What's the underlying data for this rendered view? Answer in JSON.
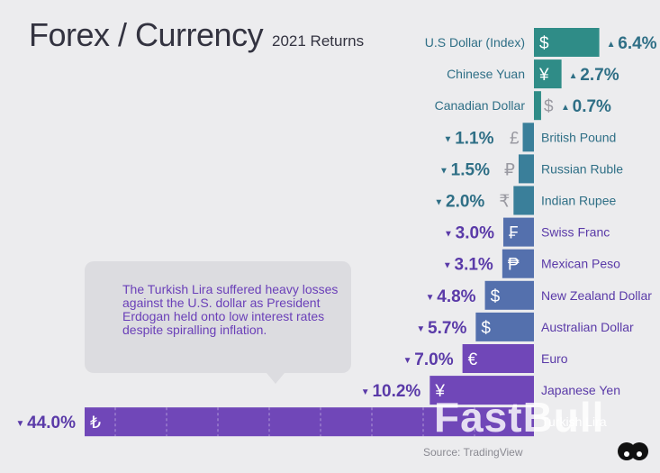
{
  "header": {
    "title": "Forex / Currency",
    "subtitle": "2021 Returns"
  },
  "callout": {
    "text": "The Turkish Lira suffered heavy losses against the U.S. dollar as President Erdogan held onto low interest rates despite spiralling inflation."
  },
  "footer": {
    "source": "Source: TradingView",
    "watermark": "FastBull"
  },
  "colors": {
    "gain": "#2f8c87",
    "loss_teal": "#3a7f9a",
    "loss_blue": "#5470ad",
    "loss_purple": "#7047b8",
    "label_teal": "#2f6f86",
    "label_purple": "#5a3aa8",
    "background": "#ececee"
  },
  "chart_data": {
    "type": "bar",
    "title": "Forex / Currency",
    "subtitle": "2021 Returns",
    "categories": [
      "U.S Dollar (Index)",
      "Chinese Yuan",
      "Canadian Dollar",
      "British Pound",
      "Russian Ruble",
      "Indian Rupee",
      "Swiss Franc",
      "Mexican Peso",
      "New Zealand Dollar",
      "Australian Dollar",
      "Euro",
      "Japanese Yen",
      "Turkish Lira"
    ],
    "values": [
      6.4,
      2.7,
      0.7,
      -1.1,
      -1.5,
      -2.0,
      -3.0,
      -3.1,
      -4.8,
      -5.7,
      -7.0,
      -10.2,
      -44.0
    ],
    "value_labels": [
      "6.4%",
      "2.7%",
      "0.7%",
      "1.1%",
      "1.5%",
      "2.0%",
      "3.0%",
      "3.1%",
      "4.8%",
      "5.7%",
      "7.0%",
      "10.2%",
      "44.0%"
    ],
    "symbols": [
      "$",
      "¥",
      "$",
      "£",
      "₽",
      "₹",
      "₣",
      "₱",
      "$",
      "$",
      "€",
      "¥",
      "₺"
    ],
    "orientation": "horizontal",
    "xlim": [
      -44.0,
      6.4
    ],
    "grid": false,
    "legend": "none"
  }
}
